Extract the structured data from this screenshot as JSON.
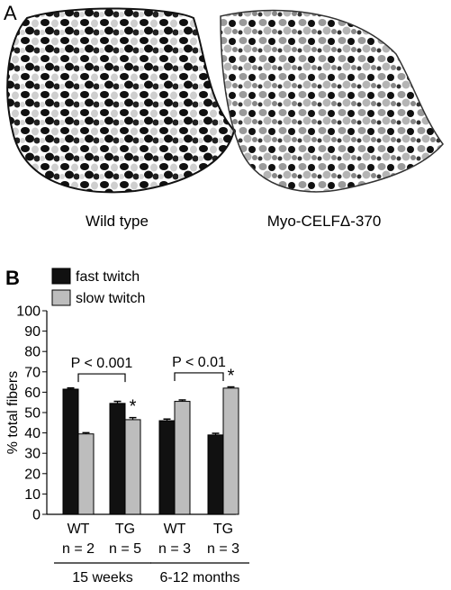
{
  "panel_a": {
    "letter": "A",
    "left_caption": "Wild type",
    "right_caption": "Myo-CELFΔ-370"
  },
  "panel_b": {
    "letter": "B"
  },
  "colors": {
    "fast": "#111111",
    "slow": "#bdbdbd",
    "outline": "#000000"
  },
  "chart_data": {
    "type": "bar",
    "ylabel": "% total fibers",
    "ylim": [
      0,
      100
    ],
    "yticks": [
      0,
      10,
      20,
      30,
      40,
      50,
      60,
      70,
      80,
      90,
      100
    ],
    "legend_placement": "top-left",
    "groups": [
      {
        "label": "WT",
        "n": "n = 2",
        "values": {
          "fast twitch": 61.5,
          "slow twitch": 39.5
        },
        "errors": {
          "fast twitch": 0.6,
          "slow twitch": 0.6
        },
        "star": ""
      },
      {
        "label": "TG",
        "n": "n = 5",
        "values": {
          "fast twitch": 54.5,
          "slow twitch": 46.5
        },
        "errors": {
          "fast twitch": 1.0,
          "slow twitch": 1.0
        },
        "star": "*"
      },
      {
        "label": "WT",
        "n": "n = 3",
        "values": {
          "fast twitch": 46.0,
          "slow twitch": 55.5
        },
        "errors": {
          "fast twitch": 0.8,
          "slow twitch": 0.7
        },
        "star": ""
      },
      {
        "label": "TG",
        "n": "n = 3",
        "values": {
          "fast twitch": 39.0,
          "slow twitch": 62.0
        },
        "errors": {
          "fast twitch": 0.8,
          "slow twitch": 0.6
        },
        "star": "*"
      }
    ],
    "series": [
      {
        "name": "fast twitch"
      },
      {
        "name": "slow twitch"
      }
    ],
    "age_groups": [
      {
        "label": "15 weeks",
        "group_indices": [
          0,
          1
        ]
      },
      {
        "label": "6-12 months",
        "group_indices": [
          2,
          3
        ]
      }
    ],
    "comparisons": [
      {
        "label": "P < 0.001",
        "group_indices": [
          0,
          1
        ]
      },
      {
        "label": "P < 0.01",
        "group_indices": [
          2,
          3
        ]
      }
    ],
    "star_symbol": "*"
  }
}
